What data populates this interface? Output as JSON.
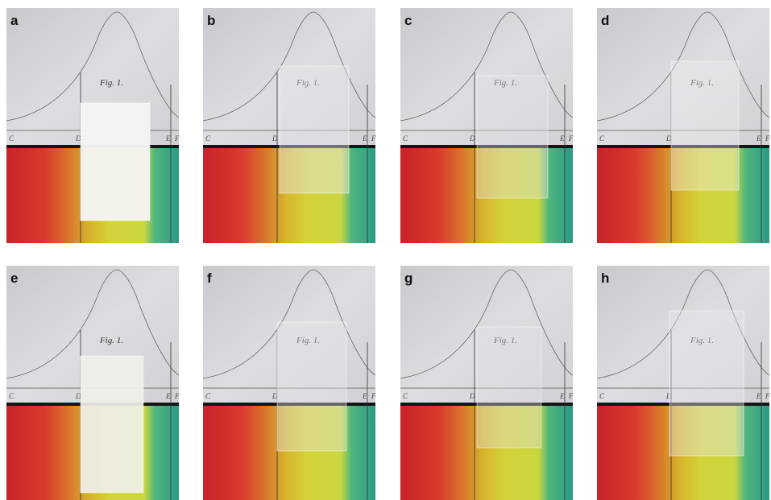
{
  "panels": [
    {
      "label": "a"
    },
    {
      "label": "b"
    },
    {
      "label": "c"
    },
    {
      "label": "d"
    },
    {
      "label": "e"
    },
    {
      "label": "f"
    },
    {
      "label": "g"
    },
    {
      "label": "h"
    }
  ],
  "plate_text": "Fig. 1.",
  "axis_letters": [
    "C",
    "D",
    "E",
    "F"
  ]
}
